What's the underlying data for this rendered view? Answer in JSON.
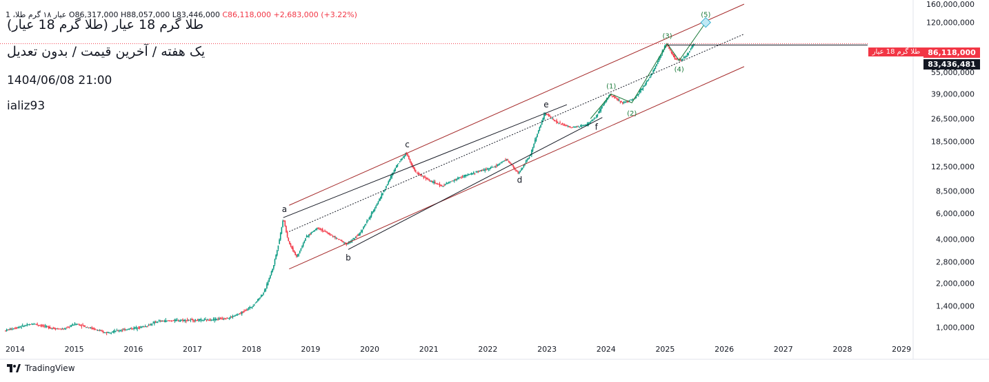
{
  "header": {
    "ohlc_text": "1 ،عیار ۱۸ گرم طلا O86,317,000 H88,057,000 L83,446,000",
    "close_text": "C86,118,000",
    "change_text": "+2,683,000 (+3.22%)",
    "symbol_title": "طلا گرم 18 عیار (طلا گرم 18 عیار)",
    "subtitle": "یک هفته / آخرین قیمت / بدون تعدیل",
    "datetime": "1404/06/08 21:00",
    "author": "ializ93"
  },
  "price_tags": {
    "name": "طلا گرم 18 عیار",
    "last_price": "86,118,000",
    "indicator": "83,436,481"
  },
  "brand": "TradingView",
  "colors": {
    "up": "#089981",
    "down": "#f23645",
    "channel": "#a52a2a",
    "wave": "#1b7a3a",
    "box": "#3bb2d0"
  },
  "chart_data": {
    "type": "candlestick",
    "title": "طلا گرم 18 عیار",
    "timeframe": "1W",
    "y_scale": "log",
    "ylim": [
      820000,
      160000000
    ],
    "xlim": [
      2014.0,
      2029.5
    ],
    "x_ticks": [
      "2014",
      "2015",
      "2016",
      "2017",
      "2018",
      "2019",
      "2020",
      "2021",
      "2022",
      "2023",
      "2024",
      "2025",
      "2026",
      "2027",
      "2028",
      "2029"
    ],
    "y_ticks": [
      "160,000,000",
      "120,000,000",
      "55,000,000",
      "39,000,000",
      "26,500,000",
      "18,500,000",
      "12,500,000",
      "8,500,000",
      "6,000,000",
      "4,000,000",
      "2,800,000",
      "2,000,000",
      "1,400,000",
      "1,000,000"
    ],
    "price_path": [
      [
        2014.0,
        950000
      ],
      [
        2014.3,
        1020000
      ],
      [
        2014.5,
        1060000
      ],
      [
        2014.8,
        990000
      ],
      [
        2015.0,
        970000
      ],
      [
        2015.2,
        1060000
      ],
      [
        2015.5,
        980000
      ],
      [
        2015.7,
        920000
      ],
      [
        2016.0,
        960000
      ],
      [
        2016.4,
        1020000
      ],
      [
        2016.6,
        1100000
      ],
      [
        2017.0,
        1120000
      ],
      [
        2017.4,
        1120000
      ],
      [
        2017.8,
        1160000
      ],
      [
        2018.0,
        1250000
      ],
      [
        2018.2,
        1400000
      ],
      [
        2018.4,
        1750000
      ],
      [
        2018.55,
        2600000
      ],
      [
        2018.65,
        3900000
      ],
      [
        2018.72,
        5600000
      ],
      [
        2018.8,
        3900000
      ],
      [
        2018.95,
        3000000
      ],
      [
        2019.1,
        4100000
      ],
      [
        2019.3,
        4800000
      ],
      [
        2019.55,
        4200000
      ],
      [
        2019.8,
        3700000
      ],
      [
        2020.0,
        4300000
      ],
      [
        2020.2,
        5800000
      ],
      [
        2020.45,
        9000000
      ],
      [
        2020.65,
        13000000
      ],
      [
        2020.8,
        15500000
      ],
      [
        2020.95,
        11500000
      ],
      [
        2021.2,
        10000000
      ],
      [
        2021.4,
        9200000
      ],
      [
        2021.7,
        10500000
      ],
      [
        2022.0,
        11500000
      ],
      [
        2022.3,
        12500000
      ],
      [
        2022.5,
        14000000
      ],
      [
        2022.7,
        11200000
      ],
      [
        2022.9,
        15000000
      ],
      [
        2023.0,
        20000000
      ],
      [
        2023.15,
        29000000
      ],
      [
        2023.35,
        25000000
      ],
      [
        2023.6,
        23000000
      ],
      [
        2023.85,
        24000000
      ],
      [
        2024.0,
        27000000
      ],
      [
        2024.25,
        39000000
      ],
      [
        2024.45,
        34000000
      ],
      [
        2024.65,
        36000000
      ],
      [
        2024.85,
        46000000
      ],
      [
        2025.0,
        58000000
      ],
      [
        2025.2,
        86000000
      ],
      [
        2025.35,
        68000000
      ],
      [
        2025.45,
        66000000
      ],
      [
        2025.55,
        72000000
      ],
      [
        2025.67,
        86118000
      ]
    ],
    "dotted_midline": {
      "start": [
        2018.8,
        4500000
      ],
      "end": [
        2026.5,
        100000000
      ]
    },
    "channel_upper": {
      "start": [
        2018.8,
        6800000
      ],
      "end": [
        2026.5,
        160000000
      ]
    },
    "channel_lower": {
      "start": [
        2018.8,
        2500000
      ],
      "end": [
        2026.5,
        60000000
      ]
    },
    "triangle_upper": {
      "start": [
        2018.7,
        5600000
      ],
      "end": [
        2023.5,
        33000000
      ]
    },
    "triangle_lower": {
      "start": [
        2019.8,
        3400000
      ],
      "end": [
        2024.1,
        27000000
      ]
    },
    "wave_labels": [
      {
        "text": "a",
        "x": 2018.72,
        "y": 5600000,
        "pos": "above"
      },
      {
        "text": "b",
        "x": 2019.8,
        "y": 3400000,
        "pos": "below"
      },
      {
        "text": "c",
        "x": 2020.8,
        "y": 15500000,
        "pos": "above"
      },
      {
        "text": "d",
        "x": 2022.7,
        "y": 11500000,
        "pos": "below"
      },
      {
        "text": "e",
        "x": 2023.15,
        "y": 29000000,
        "pos": "above"
      },
      {
        "text": "f",
        "x": 2024.0,
        "y": 26500000,
        "pos": "below"
      }
    ],
    "impulse_labels": [
      {
        "text": "(1)",
        "x": 2024.25,
        "y": 39000000,
        "pos": "above"
      },
      {
        "text": "(2)",
        "x": 2024.6,
        "y": 33000000,
        "pos": "below"
      },
      {
        "text": "(3)",
        "x": 2025.2,
        "y": 86000000,
        "pos": "above"
      },
      {
        "text": "(4)",
        "x": 2025.4,
        "y": 66000000,
        "pos": "below"
      },
      {
        "text": "(5)",
        "x": 2025.85,
        "y": 120000000,
        "pos": "above"
      }
    ],
    "impulse_path": [
      [
        2023.9,
        26500000
      ],
      [
        2024.25,
        39000000
      ],
      [
        2024.6,
        34000000
      ],
      [
        2025.2,
        86000000
      ],
      [
        2025.4,
        66000000
      ],
      [
        2025.85,
        120000000
      ]
    ],
    "target_box": {
      "x": 2025.85,
      "y": 120000000
    },
    "last_price": 86118000,
    "last_price_line_start": 2025.2
  }
}
